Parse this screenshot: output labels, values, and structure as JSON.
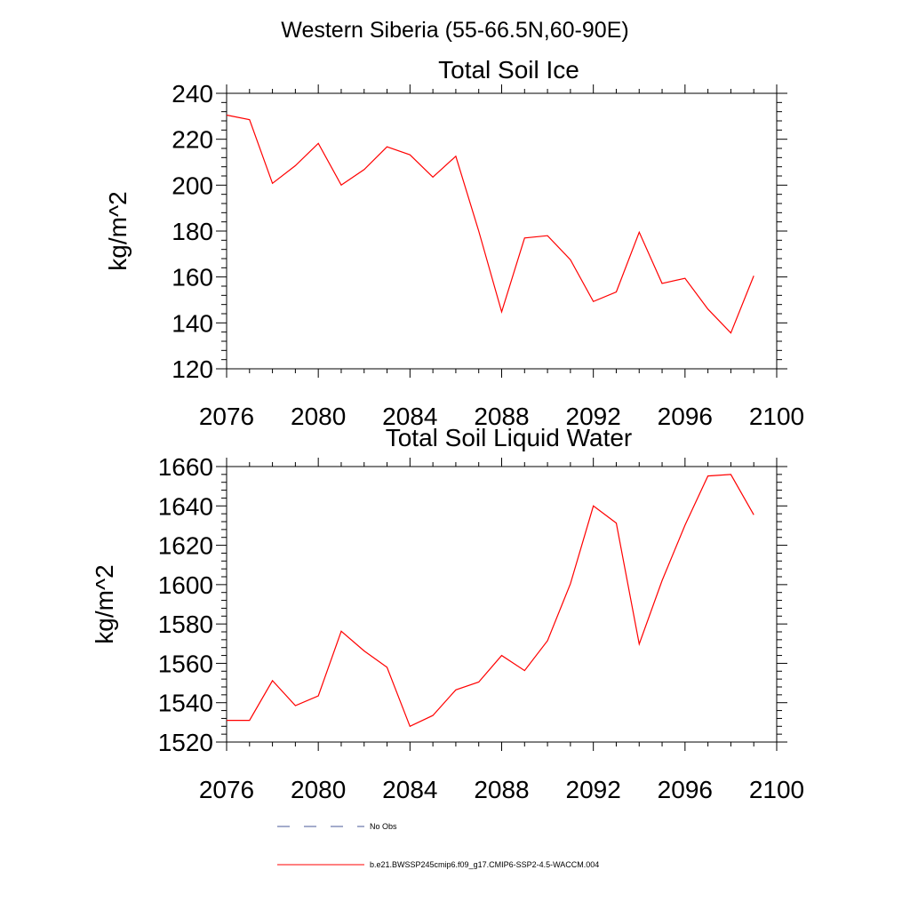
{
  "figure_title": "Western Siberia (55-66.5N,60-90E)",
  "chart_data": [
    {
      "type": "line",
      "title": "Total Soil Ice",
      "xlabel": "",
      "ylabel": "kg/m^2",
      "xlim": [
        2076,
        2100
      ],
      "ylim": [
        120,
        240
      ],
      "x_ticks": [
        2076,
        2080,
        2084,
        2088,
        2092,
        2096,
        2100
      ],
      "y_ticks": [
        120,
        140,
        160,
        180,
        200,
        220,
        240
      ],
      "x": [
        2076,
        2077,
        2078,
        2079,
        2080,
        2081,
        2082,
        2083,
        2084,
        2085,
        2086,
        2087,
        2088,
        2089,
        2090,
        2091,
        2092,
        2093,
        2094,
        2095,
        2096,
        2097,
        2098,
        2099
      ],
      "series": [
        {
          "name": "b.e21.BWSSP245cmip6.f09_g17.CMIP6-SSP2-4.5-WACCM.004",
          "color": "#ff0000",
          "values": [
            230.5,
            228.5,
            200.8,
            208.5,
            218.2,
            200.0,
            206.8,
            216.7,
            213.2,
            203.5,
            212.6,
            180.0,
            144.8,
            177.0,
            178.0,
            167.5,
            149.3,
            153.5,
            179.5,
            157.2,
            159.4,
            146.0,
            135.6,
            160.5
          ]
        }
      ]
    },
    {
      "type": "line",
      "title": "Total Soil Liquid Water",
      "xlabel": "",
      "ylabel": "kg/m^2",
      "xlim": [
        2076,
        2100
      ],
      "ylim": [
        1520,
        1660
      ],
      "x_ticks": [
        2076,
        2080,
        2084,
        2088,
        2092,
        2096,
        2100
      ],
      "y_ticks": [
        1520,
        1540,
        1560,
        1580,
        1600,
        1620,
        1640,
        1660
      ],
      "x": [
        2076,
        2077,
        2078,
        2079,
        2080,
        2081,
        2082,
        2083,
        2084,
        2085,
        2086,
        2087,
        2088,
        2089,
        2090,
        2091,
        2092,
        2093,
        2094,
        2095,
        2096,
        2097,
        2098,
        2099
      ],
      "series": [
        {
          "name": "b.e21.BWSSP245cmip6.f09_g17.CMIP6-SSP2-4.5-WACCM.004",
          "color": "#ff0000",
          "values": [
            1531.0,
            1531.0,
            1551.2,
            1538.5,
            1543.5,
            1576.3,
            1566.3,
            1558.0,
            1528.0,
            1533.5,
            1546.5,
            1550.5,
            1564.0,
            1556.3,
            1571.5,
            1600.5,
            1640.0,
            1631.3,
            1569.8,
            1602.0,
            1630.2,
            1655.2,
            1656.0,
            1635.5
          ]
        }
      ]
    }
  ],
  "legend": {
    "items": [
      {
        "label": "No Obs",
        "style": "dashed",
        "color": "#4a5a9a"
      },
      {
        "label": "b.e21.BWSSP245cmip6.f09_g17.CMIP6-SSP2-4.5-WACCM.004",
        "style": "solid",
        "color": "#ff0000"
      }
    ]
  }
}
